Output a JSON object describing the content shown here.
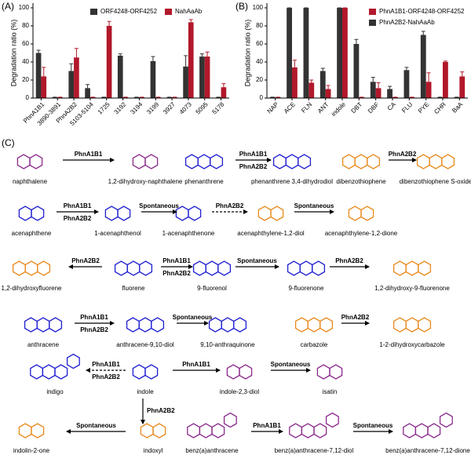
{
  "panel_labels": [
    "(A)",
    "(B)",
    "(C)"
  ],
  "chart_data": [
    {
      "type": "bar",
      "ylabel": "Degradation ratio (%)",
      "categories": [
        "PhnA1B1",
        "3890-3891",
        "PhnA2B2",
        "5103-5104",
        "1725",
        "3192",
        "3194",
        "3199",
        "3927",
        "4073",
        "5095",
        "5178"
      ],
      "series": [
        {
          "name": "ORF4248-ORF4252",
          "color": "#333333",
          "values": [
            50,
            1,
            30,
            11,
            1,
            47,
            1,
            41,
            1,
            35,
            46,
            1
          ],
          "errors": [
            3,
            0,
            8,
            4,
            0,
            2,
            0,
            5,
            0,
            12,
            3,
            0
          ]
        },
        {
          "name": "NahAaAb",
          "color": "#b2182b",
          "values": [
            24,
            1,
            45,
            1,
            80,
            1,
            1,
            1,
            1,
            84,
            46,
            12
          ],
          "errors": [
            10,
            0,
            10,
            0,
            5,
            0,
            0,
            0,
            0,
            3,
            5,
            4
          ]
        }
      ],
      "ylim": [
        0,
        100
      ],
      "yticks": [
        0,
        20,
        40,
        60,
        80,
        100
      ]
    },
    {
      "type": "bar",
      "ylabel": "Degradation ratio (%)",
      "categories": [
        "NAP",
        "ACE",
        "FLN",
        "ANT",
        "indole",
        "DBT",
        "DBF",
        "CA",
        "FLU",
        "PYE",
        "CHR",
        "BaA"
      ],
      "series": [
        {
          "name": "PhnA1B1-ORF4248-ORF4252",
          "color": "#b2182b",
          "values": [
            1,
            34,
            17,
            10,
            100,
            1,
            11,
            1,
            1,
            18,
            40,
            24
          ],
          "errors": [
            0,
            8,
            3,
            4,
            0,
            0,
            6,
            0,
            0,
            10,
            1,
            5
          ]
        },
        {
          "name": "PhnA2B2-NahAaAb",
          "color": "#333333",
          "values": [
            1,
            100,
            100,
            30,
            100,
            60,
            18,
            10,
            31,
            70,
            1,
            1
          ],
          "errors": [
            0,
            0,
            0,
            3,
            0,
            5,
            5,
            3,
            3,
            4,
            0,
            0
          ]
        }
      ],
      "ylim": [
        0,
        100
      ],
      "yticks": [
        0,
        20,
        40,
        60,
        80,
        100
      ]
    }
  ],
  "scheme": {
    "nodes": [
      {
        "label": "naphthalene",
        "color": "#8b2a8b"
      },
      {
        "label": "1,2-dihydroxy-naphthalene",
        "color": "#8b2a8b"
      },
      {
        "label": "phenanthrene",
        "color": "#1f1fd0"
      },
      {
        "label": "phenanthrene 3,4-dihydrodiol",
        "color": "#1f1fd0"
      },
      {
        "label": "dibenzothiophene",
        "color": "#e8891c"
      },
      {
        "label": "dibenzothiophene S-oxide",
        "color": "#e8891c"
      },
      {
        "label": "acenaphthene",
        "color": "#1f1fd0"
      },
      {
        "label": "1-acenaphthenol",
        "color": "#1f1fd0"
      },
      {
        "label": "1-acenaphthenone",
        "color": "#1f1fd0"
      },
      {
        "label": "acenaphthylene-1,2-diol",
        "color": "#e8891c"
      },
      {
        "label": "acenaphthylene-1,2-dione",
        "color": "#e8891c"
      },
      {
        "label": "1,2-dihydroxyfluorene",
        "color": "#e8891c"
      },
      {
        "label": "fluorene",
        "color": "#1f1fd0"
      },
      {
        "label": "9-fluorenol",
        "color": "#1f1fd0"
      },
      {
        "label": "9-fluorenone",
        "color": "#1f1fd0"
      },
      {
        "label": "1,2-dihydroxy-9-fluorenone",
        "color": "#e8891c"
      },
      {
        "label": "anthracene",
        "color": "#1f1fd0"
      },
      {
        "label": "anthracene-9,10-diol",
        "color": "#1f1fd0"
      },
      {
        "label": "9,10-anthraquinone",
        "color": "#1f1fd0"
      },
      {
        "label": "carbazole",
        "color": "#e8891c"
      },
      {
        "label": "1-2-dihydroxycarbazole",
        "color": "#e8891c"
      },
      {
        "label": "indigo",
        "color": "#1f1fd0"
      },
      {
        "label": "indole",
        "color": "#1f1fd0"
      },
      {
        "label": "indole-2,3-diol",
        "color": "#8b2a8b"
      },
      {
        "label": "isatin",
        "color": "#8b2a8b"
      },
      {
        "label": "indolin-2-one",
        "color": "#e8891c"
      },
      {
        "label": "indoxyl",
        "color": "#e8891c"
      },
      {
        "label": "benz(a)anthracene",
        "color": "#8b2a8b"
      },
      {
        "label": "benz(a)anthracene-7,12-diol",
        "color": "#8b2a8b"
      },
      {
        "label": "benz(a)anthracene-7,12-dione",
        "color": "#8b2a8b"
      }
    ],
    "arrows": [
      {
        "enzymes": [
          "PhnA1B1"
        ]
      },
      {
        "enzymes": [
          "PhnA1B1",
          "PhnA2B2"
        ]
      },
      {
        "enzymes": [
          "PhnA2B2"
        ]
      },
      {
        "enzymes": [
          "PhnA1B1",
          "PhnA2B2"
        ]
      },
      {
        "enzymes": [
          "Spontaneous"
        ]
      },
      {
        "enzymes": [
          "PhnA2B2"
        ]
      },
      {
        "enzymes": [
          "Spontaneous"
        ]
      },
      {
        "enzymes": [
          "PhnA2B2"
        ]
      },
      {
        "enzymes": [
          "PhnA1B1",
          "PhnA2B2"
        ]
      },
      {
        "enzymes": [
          "Spontaneous"
        ]
      },
      {
        "enzymes": [
          "PhnA2B2"
        ]
      },
      {
        "enzymes": [
          "PhnA1B1",
          "PhnA2B2"
        ]
      },
      {
        "enzymes": [
          "Spontaneous"
        ]
      },
      {
        "enzymes": [
          "PhnA2B2"
        ]
      },
      {
        "enzymes": [
          "PhnA1B1",
          "PhnA2B2"
        ]
      },
      {
        "enzymes": [
          "PhnA1B1"
        ]
      },
      {
        "enzymes": [
          "Spontaneous"
        ]
      },
      {
        "enzymes": [
          "PhnA2B2"
        ]
      },
      {
        "enzymes": [
          "Spontaneous"
        ]
      },
      {
        "enzymes": [
          "PhnA1B1"
        ]
      },
      {
        "enzymes": [
          "Spontaneous"
        ]
      }
    ]
  }
}
